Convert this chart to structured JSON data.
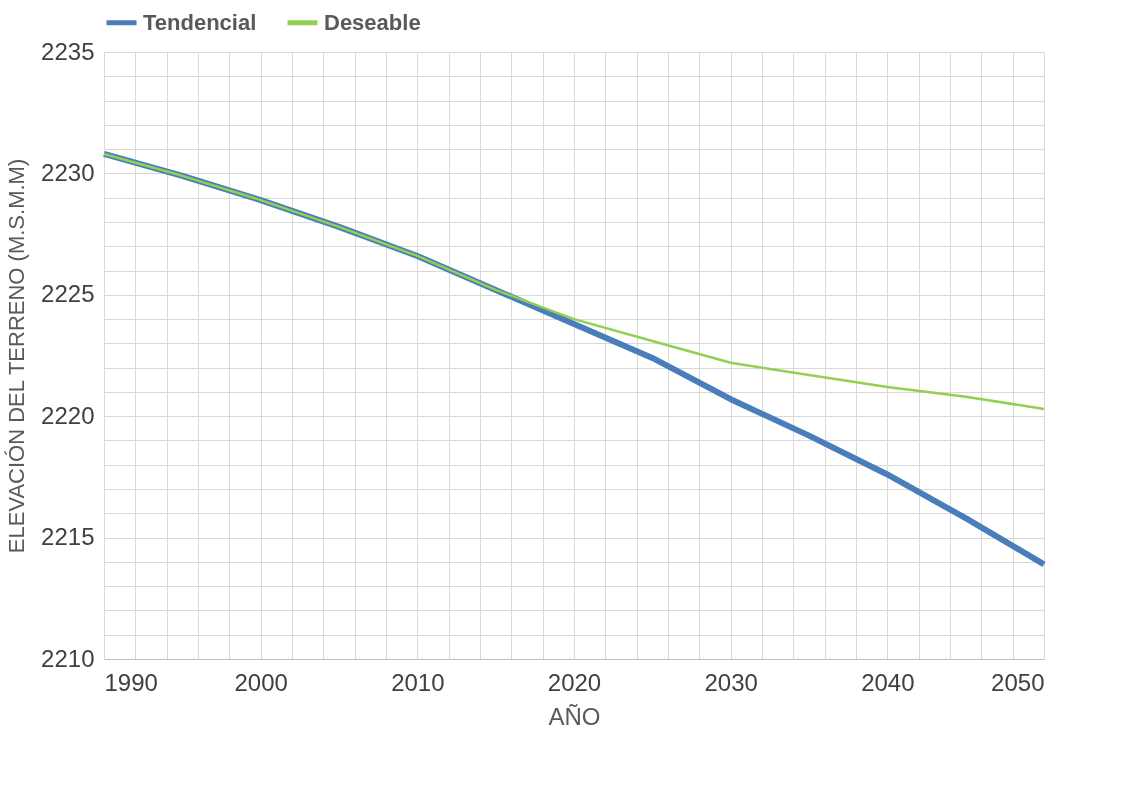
{
  "chart_data": {
    "type": "line",
    "xlabel": "AÑO",
    "ylabel": "ELEVACIÓN DEL TERRENO (M.S.M.M)",
    "x": [
      1990,
      1995,
      2000,
      2005,
      2010,
      2015,
      2020,
      2025,
      2030,
      2035,
      2040,
      2045,
      2050
    ],
    "series": [
      {
        "name": "Tendencial",
        "color": "#4a7ebb",
        "values": [
          2230.8,
          2229.9,
          2228.9,
          2227.8,
          2226.6,
          2225.2,
          2223.8,
          2222.4,
          2220.7,
          2219.2,
          2217.6,
          2215.8,
          2213.9
        ]
      },
      {
        "name": "Deseable",
        "color": "#92d050",
        "values": [
          2230.8,
          2229.9,
          2228.9,
          2227.8,
          2226.6,
          2225.2,
          2224.0,
          2223.1,
          2222.2,
          2221.7,
          2221.2,
          2220.8,
          2220.3
        ]
      }
    ],
    "xlim": [
      1990,
      2050
    ],
    "ylim": [
      2210,
      2235
    ],
    "xticks": [
      1990,
      {
        "value": 1992,
        "label": null
      },
      {
        "value": 1994,
        "label": null
      },
      {
        "value": 1996,
        "label": null
      },
      {
        "value": 1998,
        "label": null
      },
      2000,
      {
        "value": 2002,
        "label": null
      },
      {
        "value": 2004,
        "label": null
      },
      {
        "value": 2006,
        "label": null
      },
      {
        "value": 2008,
        "label": null
      },
      2010,
      {
        "value": 2012,
        "label": null
      },
      {
        "value": 2014,
        "label": null
      },
      {
        "value": 2016,
        "label": null
      },
      {
        "value": 2018,
        "label": null
      },
      2020,
      {
        "value": 2022,
        "label": null
      },
      {
        "value": 2024,
        "label": null
      },
      {
        "value": 2026,
        "label": null
      },
      {
        "value": 2028,
        "label": null
      },
      2030,
      {
        "value": 2032,
        "label": null
      },
      {
        "value": 2034,
        "label": null
      },
      {
        "value": 2036,
        "label": null
      },
      {
        "value": 2038,
        "label": null
      },
      2040,
      {
        "value": 2042,
        "label": null
      },
      {
        "value": 2044,
        "label": null
      },
      {
        "value": 2046,
        "label": null
      },
      {
        "value": 2048,
        "label": null
      },
      2050
    ],
    "yticks": [
      2210,
      {
        "value": 2211,
        "label": null
      },
      {
        "value": 2212,
        "label": null
      },
      {
        "value": 2213,
        "label": null
      },
      {
        "value": 2214,
        "label": null
      },
      2215,
      {
        "value": 2216,
        "label": null
      },
      {
        "value": 2217,
        "label": null
      },
      {
        "value": 2218,
        "label": null
      },
      {
        "value": 2219,
        "label": null
      },
      2220,
      {
        "value": 2221,
        "label": null
      },
      {
        "value": 2222,
        "label": null
      },
      {
        "value": 2223,
        "label": null
      },
      {
        "value": 2224,
        "label": null
      },
      2225,
      {
        "value": 2226,
        "label": null
      },
      {
        "value": 2227,
        "label": null
      },
      {
        "value": 2228,
        "label": null
      },
      {
        "value": 2229,
        "label": null
      },
      2230,
      {
        "value": 2231,
        "label": null
      },
      {
        "value": 2232,
        "label": null
      },
      {
        "value": 2233,
        "label": null
      },
      {
        "value": 2234,
        "label": null
      },
      2235
    ],
    "grid": true,
    "legend": "top",
    "marker": "none",
    "line_style": "solid"
  }
}
